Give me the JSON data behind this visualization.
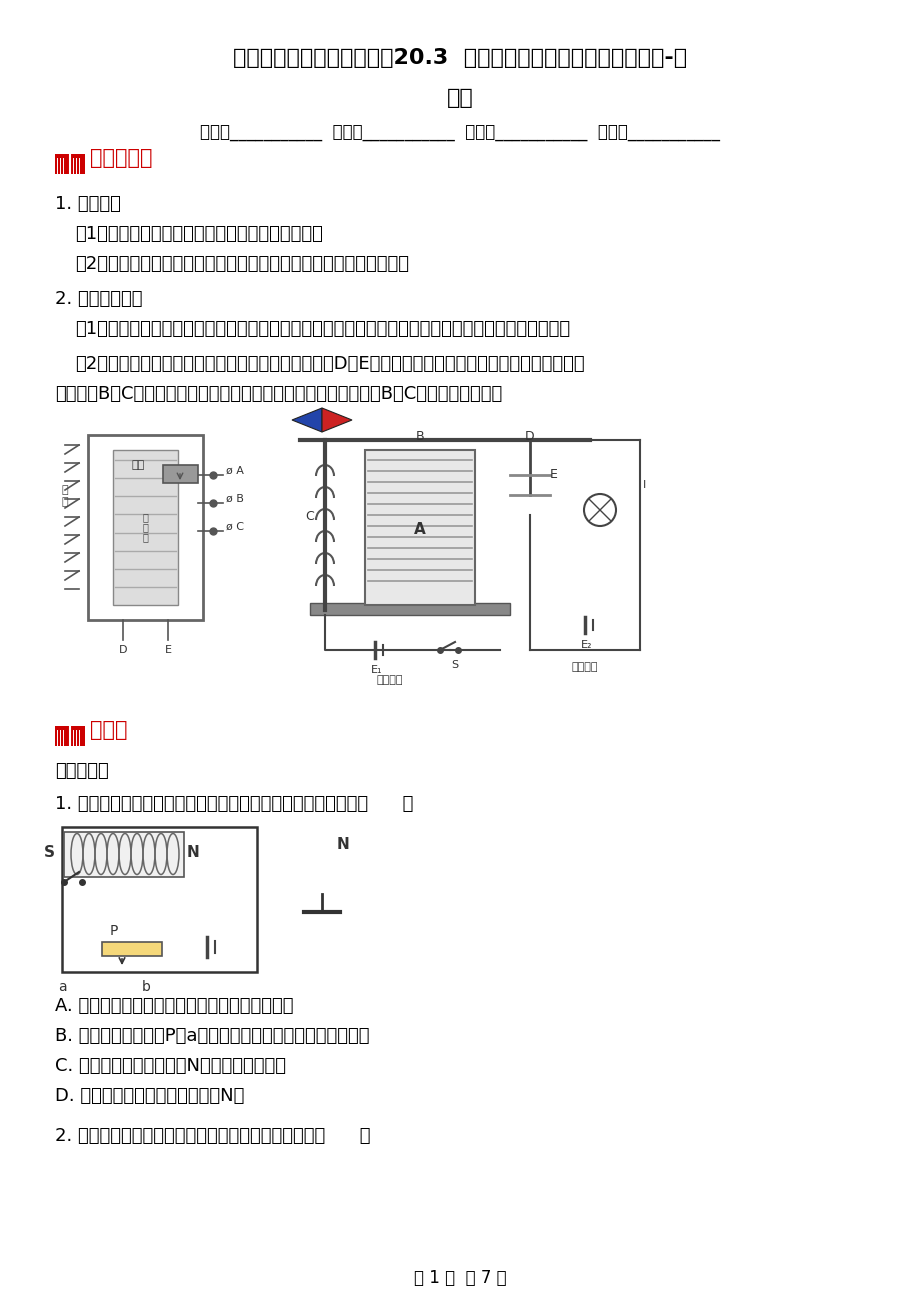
{
  "bg_color": "#ffffff",
  "title_line1": "人教版九年级物理全一册《20.3  电磁铁、电磁继电器》同步训练题-带",
  "title_line2": "答案",
  "school_line": "学校：___________  班级：___________  姓名：___________  考号：___________",
  "section1_text": "知识点回顾",
  "section2_text": "练习题",
  "k_lines": [
    "1. 电磁铁：",
    "（1）有电流通过时有磁性，没有电流时失去磁性。",
    "（2）电磁铁磁性的决定因素：电流的强弱、线圈的匝数、有无铁芯。",
    "2. 电磁继电器：",
    "（1）定义：继电器是利用低电压、弱电流电路的通断，来间接地控制高电压、强电流电路通断的装置。",
    "（2）工作原理（如下图）：当较低的电压加在接线柱D、E两端，较小的电流通过线圈时，电磁铁把衔铁",
    "吸下，使B、C两个接线柱所连的触点接通，较大的电流就可以通过B、C带动机器工作了。"
  ],
  "exercise_title": "一、选择题",
  "q1": "1. 如图所示，小磁针置于电磁铁的右侧，下列叙述中正确的是（      ）",
  "q1_opts": [
    "A. 闭合开关前，电磁铁与小磁针间没有力的作用",
    "B. 闭合开关后，滑片P向a移动时电磁铁与小磁针的作用力不变",
    "C. 闭合开关后，小磁针的N极将旋转指向右方",
    "D. 闭合开关后，电磁铁的左端为N极"
  ],
  "q2": "2. 如图所示，是研究电磁铁实验，下列说法正确的是（      ）",
  "footer": "第 1 页  共 7 页",
  "red": "#cc0000",
  "black": "#000000",
  "gray": "#555555"
}
